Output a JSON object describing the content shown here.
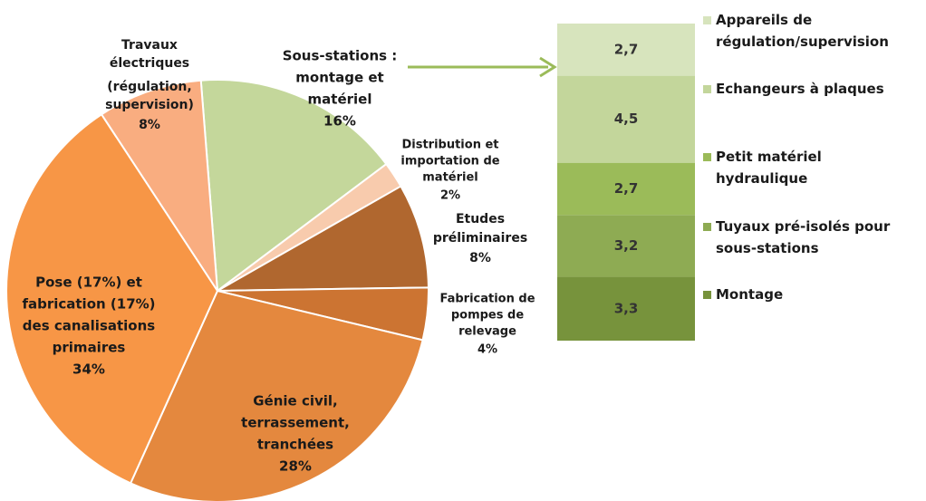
{
  "chart_data": [
    {
      "type": "pie",
      "categories": [
        [
          "Sous-stations :",
          "montage et",
          "matériel"
        ],
        [
          "Distribution et",
          "importation de",
          "matériel"
        ],
        [
          "Etudes",
          "préliminaires"
        ],
        [
          "Fabrication de",
          "pompes de",
          "relevage"
        ],
        [
          "Génie civil,",
          "terrassement,",
          "tranchées"
        ],
        [
          "Pose (17%) et",
          "fabrication (17%)",
          "des canalisations",
          "primaires"
        ],
        [
          "Travaux",
          "électriques",
          "(régulation,",
          "supervision)"
        ]
      ],
      "values": [
        16,
        2,
        8,
        4,
        28,
        34,
        8
      ],
      "value_labels": [
        "16%",
        "2%",
        "8%",
        "4%",
        "28%",
        "34%",
        "8%"
      ],
      "colors": [
        "#c4d79b",
        "#f8cbad",
        "#b0672f",
        "#cc7432",
        "#e4883e",
        "#f79646",
        "#f9ad80"
      ]
    },
    {
      "type": "bar",
      "stacked": true,
      "series": [
        {
          "name": "Appareils de régulation/supervision",
          "color": "#d7e4bd",
          "values": [
            2.7
          ],
          "value_labels": [
            "2,7"
          ]
        },
        {
          "name": "Echangeurs à plaques",
          "color": "#c3d69b",
          "values": [
            4.5
          ],
          "value_labels": [
            "4,5"
          ]
        },
        {
          "name": "Petit matériel hydraulique",
          "color": "#9bbb59",
          "values": [
            2.7
          ],
          "value_labels": [
            "2,7"
          ]
        },
        {
          "name": "Tuyaux pré-isolés pour sous-stations",
          "color": "#8eab53",
          "values": [
            3.2
          ],
          "value_labels": [
            "3,2"
          ]
        },
        {
          "name": "Montage",
          "color": "#77933c",
          "values": [
            3.3
          ],
          "value_labels": [
            "3,3"
          ]
        }
      ],
      "ylim": [
        0,
        16.4
      ]
    }
  ]
}
